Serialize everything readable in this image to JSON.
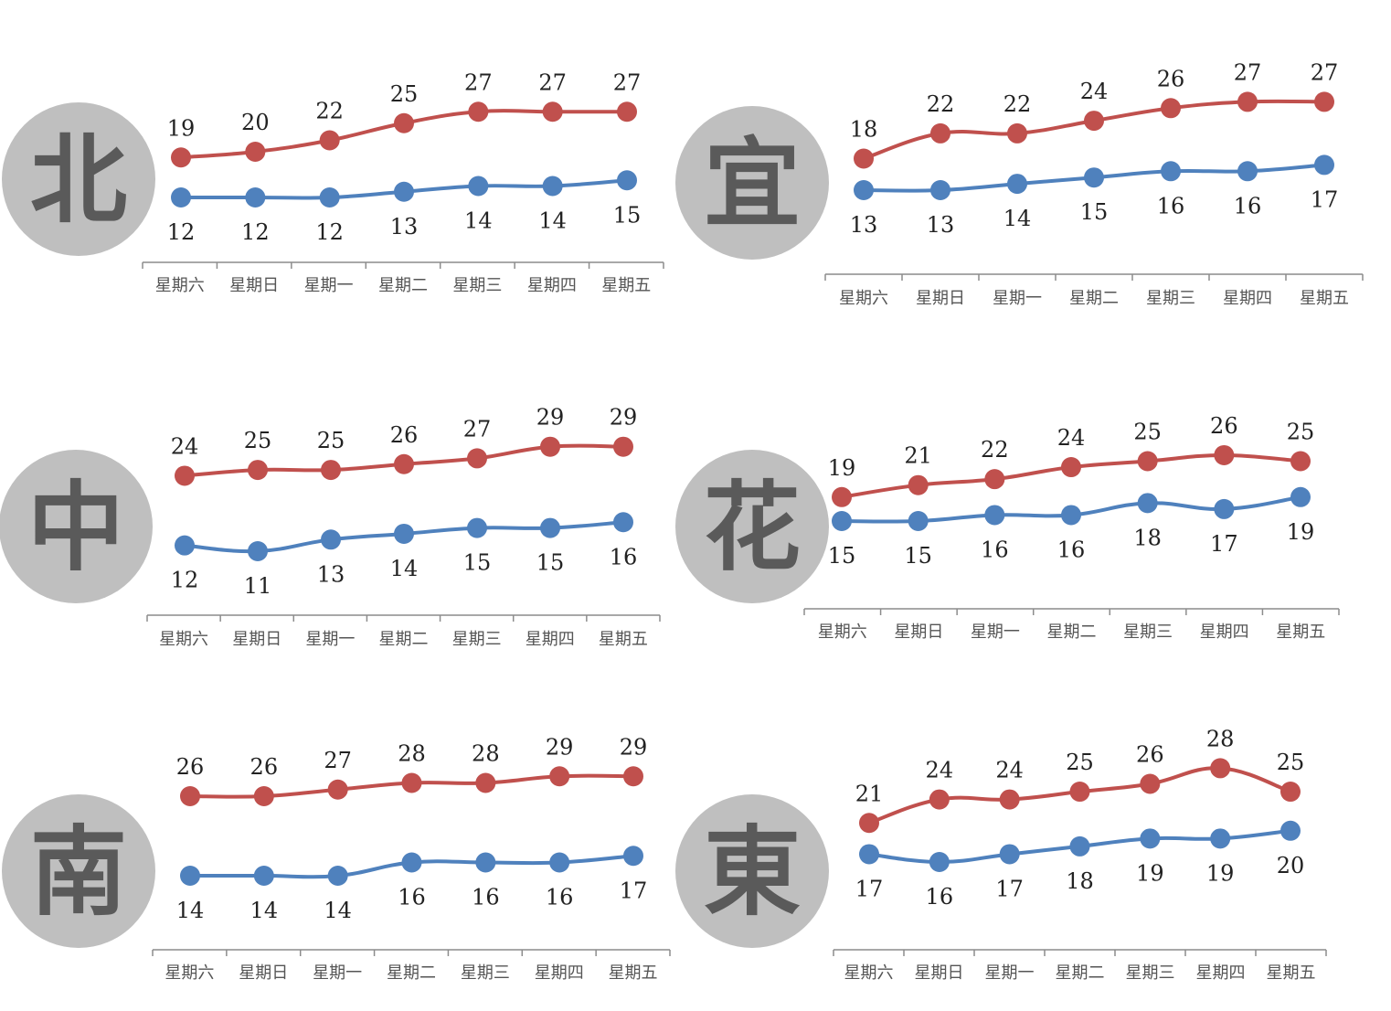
{
  "colors": {
    "high": "#c0504d",
    "low": "#4f81bd",
    "badge": "#bfbfbf",
    "axis": "#8c8c8c"
  },
  "chart_data": [
    {
      "type": "line",
      "region": "北",
      "categories": [
        "星期六",
        "星期日",
        "星期一",
        "星期二",
        "星期三",
        "星期四",
        "星期五"
      ],
      "series": [
        {
          "values": [
            19,
            20,
            22,
            25,
            27,
            27,
            27
          ]
        },
        {
          "values": [
            12,
            12,
            12,
            13,
            14,
            14,
            15
          ]
        }
      ]
    },
    {
      "type": "line",
      "region": "宜",
      "categories": [
        "星期六",
        "星期日",
        "星期一",
        "星期二",
        "星期三",
        "星期四",
        "星期五"
      ],
      "series": [
        {
          "values": [
            18,
            22,
            22,
            24,
            26,
            27,
            27
          ]
        },
        {
          "values": [
            13,
            13,
            14,
            15,
            16,
            16,
            17
          ]
        }
      ]
    },
    {
      "type": "line",
      "region": "中",
      "categories": [
        "星期六",
        "星期日",
        "星期一",
        "星期二",
        "星期三",
        "星期四",
        "星期五"
      ],
      "series": [
        {
          "values": [
            24,
            25,
            25,
            26,
            27,
            29,
            29
          ]
        },
        {
          "values": [
            12,
            11,
            13,
            14,
            15,
            15,
            16
          ]
        }
      ]
    },
    {
      "type": "line",
      "region": "花",
      "categories": [
        "星期六",
        "星期日",
        "星期一",
        "星期二",
        "星期三",
        "星期四",
        "星期五"
      ],
      "series": [
        {
          "values": [
            19,
            21,
            22,
            24,
            25,
            26,
            25
          ]
        },
        {
          "values": [
            15,
            15,
            16,
            16,
            18,
            17,
            19
          ]
        }
      ]
    },
    {
      "type": "line",
      "region": "南",
      "categories": [
        "星期六",
        "星期日",
        "星期一",
        "星期二",
        "星期三",
        "星期四",
        "星期五"
      ],
      "series": [
        {
          "values": [
            26,
            26,
            27,
            28,
            28,
            29,
            29
          ]
        },
        {
          "values": [
            14,
            14,
            14,
            16,
            16,
            16,
            17
          ]
        }
      ]
    },
    {
      "type": "line",
      "region": "東",
      "categories": [
        "星期六",
        "星期日",
        "星期一",
        "星期二",
        "星期三",
        "星期四",
        "星期五"
      ],
      "series": [
        {
          "values": [
            21,
            24,
            24,
            25,
            26,
            28,
            25
          ]
        },
        {
          "values": [
            17,
            16,
            17,
            18,
            19,
            19,
            20
          ]
        }
      ]
    }
  ]
}
